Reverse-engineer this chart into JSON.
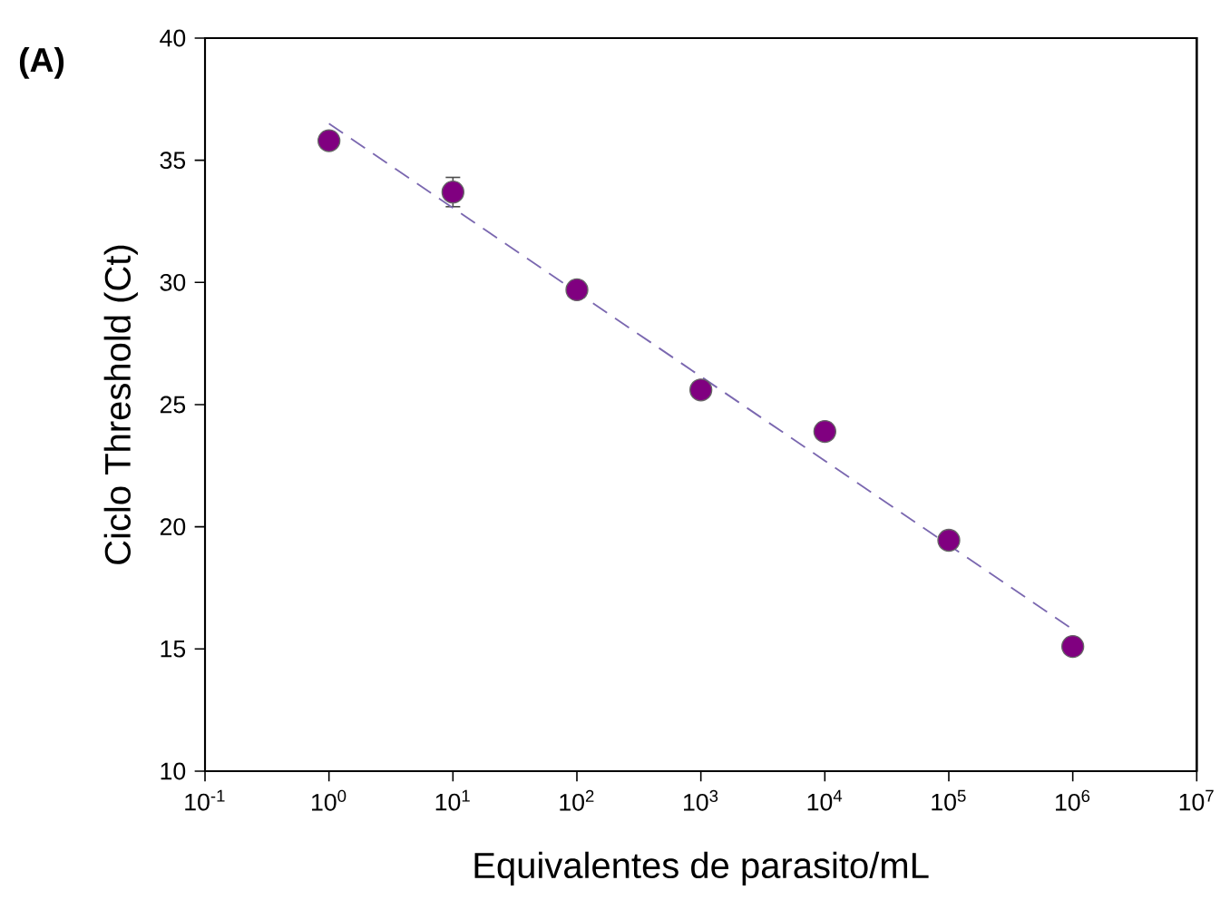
{
  "chart_data": {
    "type": "scatter",
    "title": "(A)",
    "xlabel": "Equivalentes de parasito/mL",
    "ylabel": "Ciclo Threshold (Ct)",
    "log": "x",
    "xlim": [
      0.1,
      10000000
    ],
    "xticks": [
      {
        "value": 0.1,
        "label": "10$^{-1}$"
      },
      {
        "value": 1,
        "label": "10$^{0}$"
      },
      {
        "value": 10,
        "label": "10$^{1}$"
      },
      {
        "value": 100,
        "label": "10$^{2}$"
      },
      {
        "value": 1000,
        "label": "10$^{3}$"
      },
      {
        "value": 10000,
        "label": "10$^{4}$"
      },
      {
        "value": 100000,
        "label": "10$^{5}$"
      },
      {
        "value": 1000000,
        "label": "10$^{6}$"
      },
      {
        "value": 10000000,
        "label": "10$^{7}$"
      }
    ],
    "ylim": [
      10,
      40
    ],
    "yticks": [
      10,
      15,
      20,
      25,
      30,
      35,
      40
    ],
    "series": [
      {
        "marker": "circle",
        "color": "#800080",
        "x": [
          1,
          10,
          100,
          1000,
          10000,
          100000,
          1000000
        ],
        "values": [
          35.8,
          33.7,
          29.7,
          25.6,
          23.9,
          19.45,
          15.1
        ],
        "errors": [
          null,
          0.6,
          0.3,
          null,
          null,
          null,
          null
        ]
      },
      {
        "type": "line",
        "color": "#7b68b0",
        "line_style": "dashed",
        "marker": "none",
        "x": [
          1,
          1000000
        ],
        "values": [
          36.5,
          15.8
        ]
      }
    ]
  }
}
